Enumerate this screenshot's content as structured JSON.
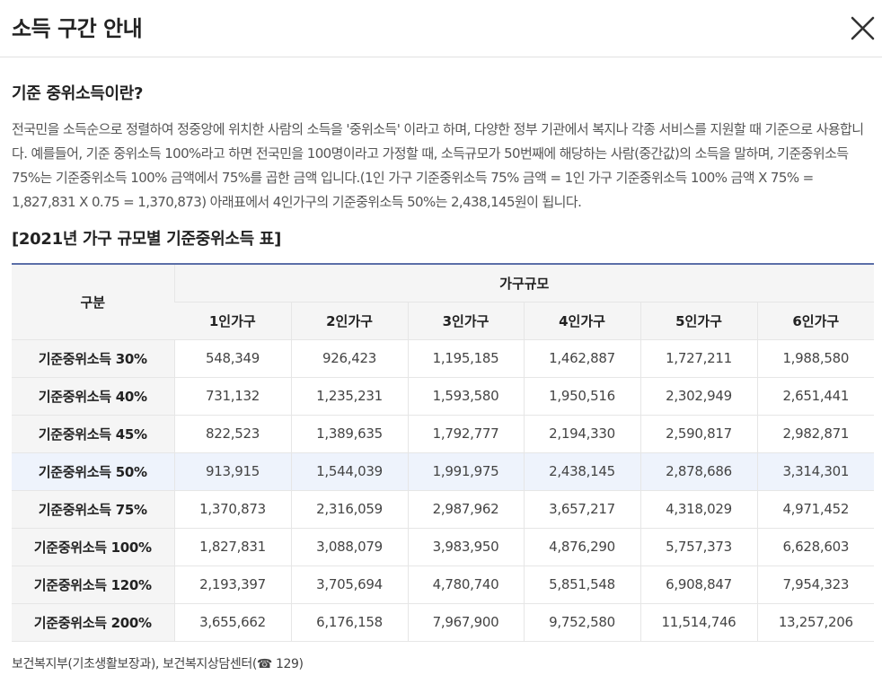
{
  "header": {
    "title": "소득 구간 안내",
    "close_icon": "close-icon"
  },
  "section": {
    "title": "기준 중위소득이란?",
    "description": "전국민을 소득순으로 정렬하여 정중앙에 위치한 사람의 소득을 '중위소득' 이라고 하며, 다양한 정부 기관에서 복지나 각종 서비스를 지원할 때 기준으로 사용합니다. 예를들어, 기준 중위소득 100%라고 하면 전국민을 100명이라고 가정할 때, 소득규모가 50번째에 해당하는 사람(중간값)의 소득을 말하며, 기준중위소득 75%는 기준중위소득 100% 금액에서 75%를 곱한 금액 입니다.(1인 가구 기준중위소득 75% 금액 = 1인 가구 기준중위소득 100% 금액 X 75% = 1,827,831 X 0.75 = 1,370,873) 아래표에서 4인가구의 기준중위소득 50%는 2,438,145원이 됩니다."
  },
  "table": {
    "title": "[2021년 가구 규모별 기준중위소득 표]",
    "corner_header": "구분",
    "group_header": "가구규모",
    "columns": [
      "1인가구",
      "2인가구",
      "3인가구",
      "4인가구",
      "5인가구",
      "6인가구"
    ],
    "rows": [
      {
        "label": "기준중위소득 30%",
        "values": [
          "548,349",
          "926,423",
          "1,195,185",
          "1,462,887",
          "1,727,211",
          "1,988,580"
        ]
      },
      {
        "label": "기준중위소득 40%",
        "values": [
          "731,132",
          "1,235,231",
          "1,593,580",
          "1,950,516",
          "2,302,949",
          "2,651,441"
        ]
      },
      {
        "label": "기준중위소득 45%",
        "values": [
          "822,523",
          "1,389,635",
          "1,792,777",
          "2,194,330",
          "2,590,817",
          "2,982,871"
        ]
      },
      {
        "label": "기준중위소득 50%",
        "values": [
          "913,915",
          "1,544,039",
          "1,991,975",
          "2,438,145",
          "2,878,686",
          "3,314,301"
        ]
      },
      {
        "label": "기준중위소득 75%",
        "values": [
          "1,370,873",
          "2,316,059",
          "2,987,962",
          "3,657,217",
          "4,318,029",
          "4,971,452"
        ]
      },
      {
        "label": "기준중위소득 100%",
        "values": [
          "1,827,831",
          "3,088,079",
          "3,983,950",
          "4,876,290",
          "5,757,373",
          "6,628,603"
        ]
      },
      {
        "label": "기준중위소득 120%",
        "values": [
          "2,193,397",
          "3,705,694",
          "4,780,740",
          "5,851,548",
          "6,908,847",
          "7,954,323"
        ]
      },
      {
        "label": "기준중위소득 200%",
        "values": [
          "3,655,662",
          "6,176,158",
          "7,967,900",
          "9,752,580",
          "11,514,746",
          "13,257,206"
        ]
      }
    ],
    "highlight_color": "#eef3fc",
    "accent_color": "#5b6fa8"
  },
  "footer": {
    "source": "보건복지부(기초생활보장과), 보건복지상담센터(☎ 129)"
  }
}
